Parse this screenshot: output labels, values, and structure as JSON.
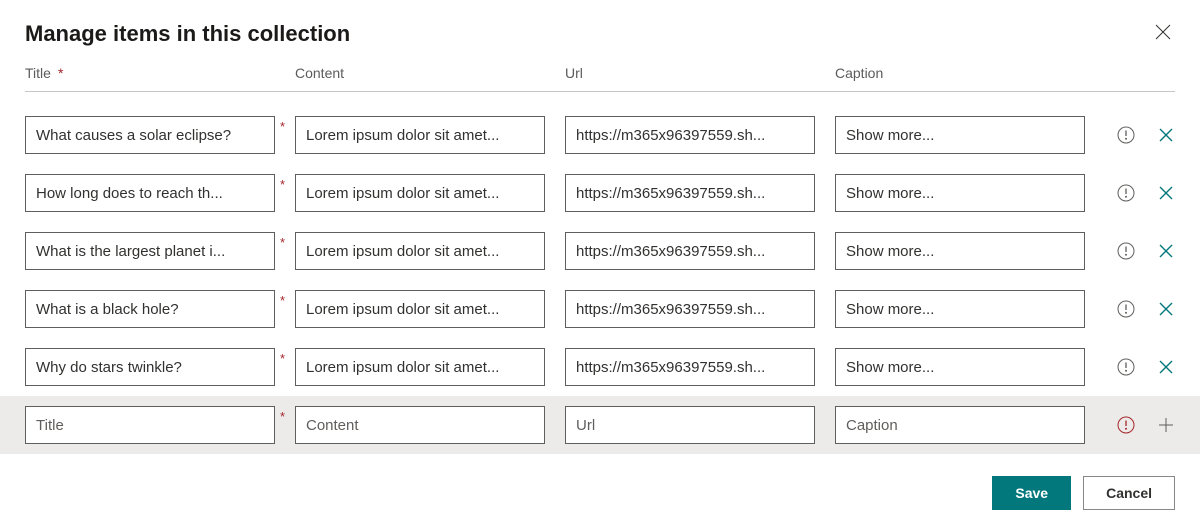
{
  "title": "Manage items in this collection",
  "columns": {
    "title": "Title",
    "content": "Content",
    "url": "Url",
    "caption": "Caption"
  },
  "rows": [
    {
      "title": "What causes a solar eclipse?",
      "content": "Lorem ipsum dolor sit amet...",
      "url": "https://m365x96397559.sh...",
      "caption": "Show more..."
    },
    {
      "title": "How long does to reach th...",
      "content": "Lorem ipsum dolor sit amet...",
      "url": "https://m365x96397559.sh...",
      "caption": "Show more..."
    },
    {
      "title": "What is the largest planet i...",
      "content": "Lorem ipsum dolor sit amet...",
      "url": "https://m365x96397559.sh...",
      "caption": "Show more..."
    },
    {
      "title": "What is a black hole?",
      "content": "Lorem ipsum dolor sit amet...",
      "url": "https://m365x96397559.sh...",
      "caption": "Show more..."
    },
    {
      "title": "Why do stars twinkle?",
      "content": "Lorem ipsum dolor sit amet...",
      "url": "https://m365x96397559.sh...",
      "caption": "Show more..."
    }
  ],
  "newRow": {
    "titlePlaceholder": "Title",
    "contentPlaceholder": "Content",
    "urlPlaceholder": "Url",
    "captionPlaceholder": "Caption"
  },
  "buttons": {
    "save": "Save",
    "cancel": "Cancel"
  },
  "colors": {
    "primary": "#03787c",
    "required": "#a4262c",
    "warnIcon": "#605e5c",
    "errorIcon": "#a4262c",
    "rowDelete": "#03787c",
    "addIcon": "#605e5c"
  }
}
